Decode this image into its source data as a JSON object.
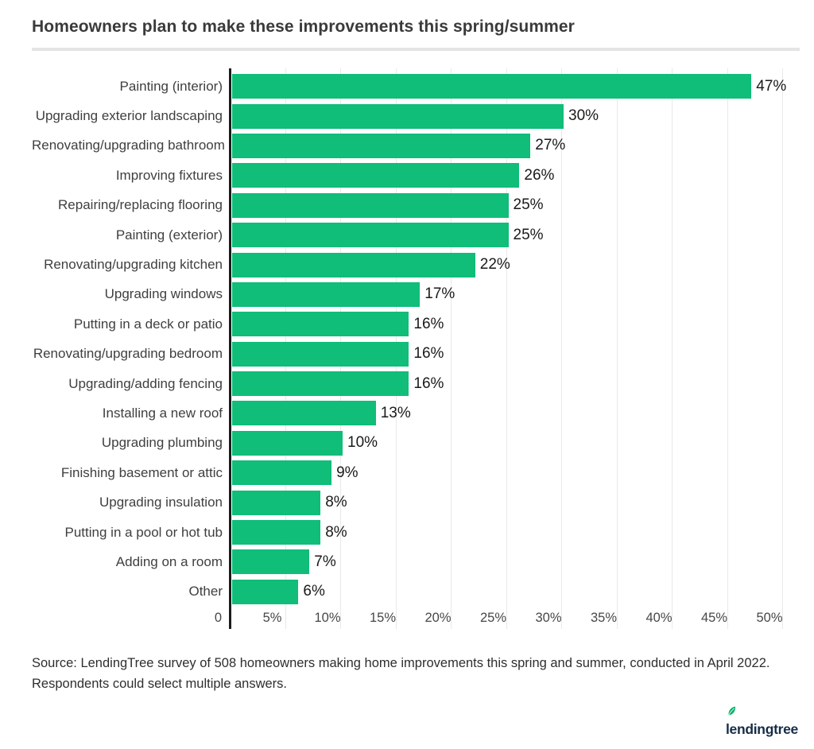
{
  "title": "Homeowners plan to make these improvements this spring/summer",
  "chart_data": {
    "type": "bar",
    "orientation": "horizontal",
    "title": "Homeowners plan to make these improvements this spring/summer",
    "categories": [
      "Painting (interior)",
      "Upgrading exterior landscaping",
      "Renovating/upgrading bathroom",
      "Improving fixtures",
      "Repairing/replacing flooring",
      "Painting (exterior)",
      "Renovating/upgrading kitchen",
      "Upgrading windows",
      "Putting in a deck or patio",
      "Renovating/upgrading bedroom",
      "Upgrading/adding fencing",
      "Installing a new roof",
      "Upgrading plumbing",
      "Finishing basement or attic",
      "Upgrading insulation",
      "Putting in a pool or hot tub",
      "Adding on a room",
      "Other"
    ],
    "values": [
      47,
      30,
      27,
      26,
      25,
      25,
      22,
      17,
      16,
      16,
      16,
      13,
      10,
      9,
      8,
      8,
      7,
      6
    ],
    "value_labels": [
      "47%",
      "30%",
      "27%",
      "26%",
      "25%",
      "25%",
      "22%",
      "17%",
      "16%",
      "16%",
      "16%",
      "13%",
      "10%",
      "9%",
      "8%",
      "8%",
      "7%",
      "6%"
    ],
    "xlabel": "",
    "ylabel": "",
    "xlim": [
      0,
      50
    ],
    "x_ticks": [
      "0",
      "5%",
      "10%",
      "15%",
      "20%",
      "25%",
      "30%",
      "35%",
      "40%",
      "45%",
      "50%"
    ],
    "grid": "vertical-on",
    "legend": "none",
    "bar_color": "#10bd79",
    "axis_color": "#1c1c1c",
    "gridline_color": "#e9e9e9"
  },
  "source": {
    "text": "Source: LendingTree survey of 508 homeowners making home improvements this spring and summer, conducted in April 2022. Respondents could select multiple answers."
  },
  "logo": {
    "text": "lendingtree",
    "leaf_color": "#00b368",
    "text_color": "#152c47"
  }
}
